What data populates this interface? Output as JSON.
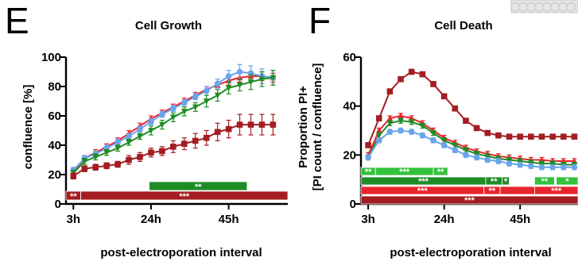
{
  "colors": {
    "red": "#e8252d",
    "darkred": "#a31d22",
    "green": "#1e8c25",
    "lightgreen": "#33c23c",
    "blue": "#6aa4ea"
  },
  "top_right_image": {
    "description_icon": "hexagon-pattern-thumbnail"
  },
  "chart_data": [
    {
      "panel_letter": "E",
      "type": "line",
      "title": "Cell Growth",
      "xlabel": "post-electroporation interval",
      "ylabel": "confluence [%]",
      "xlim": [
        1,
        61
      ],
      "ylim": [
        0,
        100
      ],
      "xticks": [
        {
          "value": 3,
          "label": "3h"
        },
        {
          "value": 24,
          "label": "24h"
        },
        {
          "value": 45,
          "label": "45h"
        }
      ],
      "yticks": [
        {
          "value": 0,
          "label": "0"
        },
        {
          "value": 20,
          "label": "20"
        },
        {
          "value": 40,
          "label": "40"
        },
        {
          "value": 60,
          "label": "60"
        },
        {
          "value": 80,
          "label": "80"
        },
        {
          "value": 100,
          "label": "100"
        }
      ],
      "series": [
        {
          "color_key": "red",
          "marker": "triangle-up",
          "x": [
            3,
            6,
            9,
            12,
            15,
            18,
            21,
            24,
            27,
            30,
            33,
            36,
            39,
            42,
            45,
            48,
            51,
            54,
            57
          ],
          "y": [
            22,
            31,
            35,
            39,
            43,
            48,
            53,
            58,
            62,
            66,
            70,
            74,
            78,
            81,
            84,
            86,
            87,
            87,
            86
          ],
          "err": [
            2,
            2,
            2,
            2,
            2,
            2,
            2,
            2,
            2,
            2,
            2,
            2,
            2,
            2,
            3,
            3,
            3,
            3,
            3
          ]
        },
        {
          "color_key": "blue",
          "marker": "circle",
          "x": [
            3,
            6,
            9,
            12,
            15,
            18,
            21,
            24,
            27,
            30,
            33,
            36,
            39,
            42,
            45,
            48,
            51,
            54,
            57
          ],
          "y": [
            23,
            31,
            34,
            38,
            42,
            46,
            51,
            56,
            61,
            65,
            69,
            73,
            77,
            82,
            87,
            90,
            89,
            87,
            86
          ],
          "err": [
            2,
            2,
            2,
            2,
            2,
            2,
            2,
            2,
            2,
            2,
            2,
            2,
            3,
            3,
            4,
            5,
            5,
            5,
            5
          ]
        },
        {
          "color_key": "green",
          "marker": "triangle-down",
          "x": [
            3,
            6,
            9,
            12,
            15,
            18,
            21,
            24,
            27,
            30,
            33,
            36,
            39,
            42,
            45,
            48,
            51,
            54,
            57
          ],
          "y": [
            21,
            29,
            32,
            35,
            38,
            42,
            46,
            50,
            54,
            59,
            63,
            66,
            70,
            74,
            79,
            81,
            83,
            85,
            86
          ],
          "err": [
            2,
            2,
            2,
            2,
            2,
            2,
            2,
            3,
            3,
            3,
            3,
            3,
            4,
            4,
            4,
            4,
            5,
            5,
            5
          ]
        },
        {
          "color_key": "darkred",
          "marker": "square",
          "x": [
            3,
            6,
            9,
            12,
            15,
            18,
            21,
            24,
            27,
            30,
            33,
            36,
            39,
            42,
            45,
            48,
            51,
            54,
            57
          ],
          "y": [
            19,
            24,
            25,
            26,
            27,
            30,
            32,
            35,
            36,
            39,
            41,
            43,
            45,
            49,
            51,
            54,
            54,
            54,
            54
          ],
          "err": [
            2,
            2,
            2,
            2,
            2,
            3,
            3,
            3,
            3,
            4,
            4,
            5,
            5,
            6,
            6,
            7,
            7,
            7,
            7
          ]
        }
      ],
      "significance_bars": [
        {
          "color_key": "green",
          "x_start": 23.5,
          "x_end": 50,
          "row": 1,
          "segments": [
            {
              "x_start": 23.5,
              "x_end": 50,
              "label": "**"
            }
          ]
        },
        {
          "color_key": "darkred",
          "x_start": 1,
          "x_end": 61,
          "row": 0,
          "segments": [
            {
              "x_start": 1,
              "x_end": 5,
              "label": "**"
            },
            {
              "x_start": 5,
              "x_end": 61,
              "label": "***"
            }
          ]
        }
      ]
    },
    {
      "panel_letter": "F",
      "type": "line",
      "title": "Cell  Death",
      "xlabel": "post-electroporation interval",
      "ylabel_line1": "Proportion PI+",
      "ylabel_line2": "[PI count / confluence]",
      "xlim": [
        1,
        61
      ],
      "ylim": [
        0,
        60
      ],
      "xticks": [
        {
          "value": 3,
          "label": "3h"
        },
        {
          "value": 24,
          "label": "24h"
        },
        {
          "value": 45,
          "label": "45h"
        }
      ],
      "yticks": [
        {
          "value": 0,
          "label": "0"
        },
        {
          "value": 20,
          "label": "20"
        },
        {
          "value": 40,
          "label": "40"
        },
        {
          "value": 60,
          "label": "60"
        }
      ],
      "series": [
        {
          "color_key": "darkred",
          "marker": "square",
          "x": [
            3,
            6,
            9,
            12,
            15,
            18,
            21,
            24,
            27,
            30,
            33,
            36,
            39,
            42,
            45,
            48,
            51,
            54,
            57,
            60
          ],
          "y": [
            24,
            35,
            46,
            51,
            54,
            53,
            49,
            44,
            39,
            34,
            31,
            29,
            28,
            27.5,
            27.5,
            27.5,
            27.5,
            27.5,
            27.5,
            27.5
          ],
          "err": [
            1,
            1,
            1,
            1,
            1,
            1,
            1,
            1,
            1,
            1,
            1,
            1,
            1,
            1,
            1,
            1,
            1,
            1,
            1,
            1
          ]
        },
        {
          "color_key": "red",
          "marker": "triangle-up",
          "x": [
            3,
            6,
            9,
            12,
            15,
            18,
            21,
            24,
            27,
            30,
            33,
            36,
            39,
            42,
            45,
            48,
            51,
            54,
            57,
            60
          ],
          "y": [
            20,
            30,
            35,
            36,
            35,
            33,
            30,
            27,
            25,
            23,
            21.5,
            20.5,
            19.5,
            19,
            18.5,
            18,
            18,
            17.5,
            17.5,
            17.5
          ],
          "err": [
            1,
            1,
            1,
            1,
            1,
            1,
            1,
            1,
            1,
            1,
            1,
            1,
            1,
            1,
            1,
            1,
            1,
            1,
            1,
            1
          ]
        },
        {
          "color_key": "green",
          "marker": "triangle-down",
          "x": [
            3,
            6,
            9,
            12,
            15,
            18,
            21,
            24,
            27,
            30,
            33,
            36,
            39,
            42,
            45,
            48,
            51,
            54,
            57,
            60
          ],
          "y": [
            19,
            28,
            33,
            34,
            33.5,
            32,
            29,
            26,
            24,
            22,
            20.5,
            19.5,
            18.5,
            18,
            17.5,
            17,
            16.5,
            16.5,
            16,
            16
          ],
          "err": [
            1,
            1,
            1,
            1,
            1,
            1,
            1,
            1,
            1,
            1,
            1,
            1,
            1,
            1,
            1,
            1,
            1,
            1,
            1,
            1
          ]
        },
        {
          "color_key": "blue",
          "marker": "circle",
          "x": [
            3,
            6,
            9,
            12,
            15,
            18,
            21,
            24,
            27,
            30,
            33,
            36,
            39,
            42,
            45,
            48,
            51,
            54,
            57,
            60
          ],
          "y": [
            19,
            26,
            29.5,
            30,
            29.5,
            28,
            26,
            24,
            22,
            20,
            19,
            18,
            17.5,
            16.5,
            16,
            15.5,
            15,
            15,
            15,
            15
          ],
          "err": [
            1,
            1,
            1,
            1,
            1,
            1,
            1,
            1,
            1,
            1,
            1,
            1,
            1,
            1,
            1,
            1,
            1,
            1,
            1,
            1
          ]
        }
      ],
      "significance_bars": [
        {
          "color_key": "lightgreen",
          "row": 3,
          "segments": [
            {
              "x_start": 1,
              "x_end": 5,
              "label": "**"
            },
            {
              "x_start": 5,
              "x_end": 21,
              "label": "***"
            },
            {
              "x_start": 21,
              "x_end": 25,
              "label": "**"
            }
          ]
        },
        {
          "color_key": "green",
          "row": 2,
          "segments": [
            {
              "x_start": 1,
              "x_end": 35.5,
              "label": "***"
            },
            {
              "x_start": 35.5,
              "x_end": 40,
              "label": "**"
            },
            {
              "x_start": 40,
              "x_end": 42,
              "label": "*"
            }
          ]
        },
        {
          "color_key": "red",
          "row": 1,
          "segments": [
            {
              "x_start": 1,
              "x_end": 35,
              "label": "***"
            },
            {
              "x_start": 35,
              "x_end": 39.5,
              "label": "**"
            },
            {
              "x_start": 39.5,
              "x_end": 61,
              "label": ""
            }
          ]
        },
        {
          "color_key": "darkred",
          "row": 0,
          "segments": [
            {
              "x_start": 1,
              "x_end": 61,
              "label": "***"
            }
          ]
        },
        {
          "color_key": "lightgreen",
          "row": 2,
          "segments": [
            {
              "x_start": 49,
              "x_end": 54.5,
              "label": "**"
            },
            {
              "x_start": 55,
              "x_end": 61,
              "label": "*"
            }
          ]
        },
        {
          "color_key": "red",
          "row": 1,
          "segments": [
            {
              "x_start": 49,
              "x_end": 61,
              "label": "***"
            }
          ]
        }
      ]
    }
  ]
}
